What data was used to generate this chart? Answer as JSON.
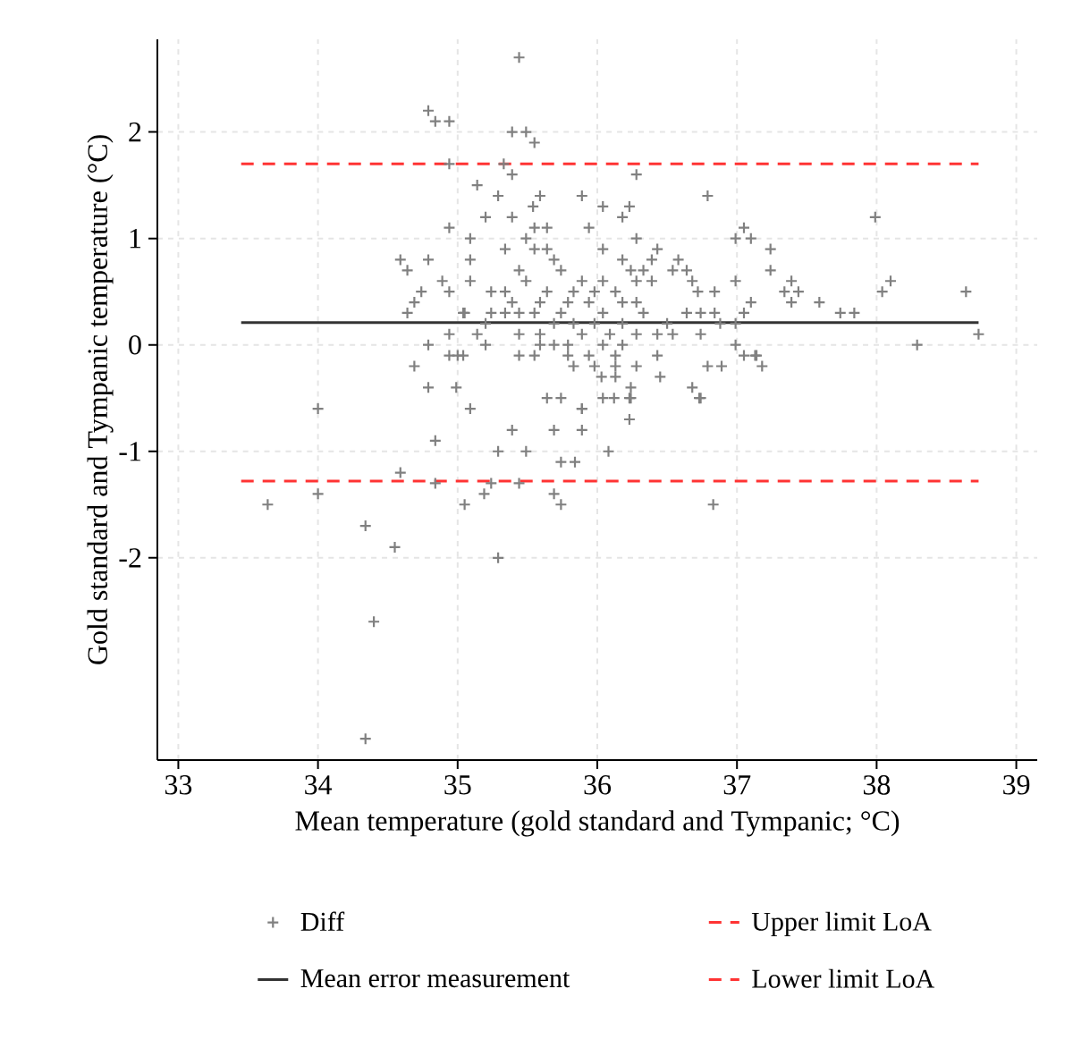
{
  "chart_data": {
    "type": "scatter",
    "xlabel": "Mean temperature (gold standard and Tympanic; °C)",
    "ylabel": "Gold standard and Tympanic temperature (°C)",
    "xlim": [
      32.85,
      39.15
    ],
    "ylim": [
      -3.9,
      2.87
    ],
    "xticks": [
      33,
      34,
      35,
      36,
      37,
      38,
      39
    ],
    "yticks": [
      -2,
      -1,
      0,
      1,
      2
    ],
    "grid": true,
    "legend": "bottom",
    "series": [
      {
        "name": "Diff",
        "marker": "cross",
        "color": "#808080",
        "x": [
          33.64,
          34.0,
          34.34,
          34.55,
          34.4,
          34.34,
          34.59,
          34.84,
          34.84,
          34.0,
          35.05,
          35.09,
          35.19,
          35.24,
          35.29,
          35.29,
          35.39,
          35.44,
          35.49,
          35.69,
          35.74,
          35.69,
          35.74,
          35.84,
          35.89,
          35.89,
          36.83,
          36.08,
          36.23,
          36.12,
          36.23,
          36.73,
          34.79,
          34.84,
          34.94,
          34.94,
          34.94,
          34.59,
          34.64,
          34.79,
          34.89,
          34.94,
          34.74,
          34.69,
          34.64,
          35.05,
          34.79,
          34.94,
          34.94,
          35.0,
          34.69,
          34.79,
          34.99,
          35.44,
          35.39,
          35.49,
          35.55,
          35.33,
          35.39,
          36.28,
          35.14,
          35.29,
          35.59,
          35.89,
          36.79,
          35.2,
          35.54,
          36.04,
          36.23,
          36.18,
          35.39,
          35.55,
          35.64,
          35.94,
          35.09,
          35.49,
          36.28,
          36.99,
          37.05,
          37.1,
          35.34,
          35.55,
          35.64,
          36.04,
          36.43,
          35.09,
          35.69,
          36.18,
          36.39,
          36.58,
          35.44,
          35.74,
          36.24,
          36.33,
          36.54,
          36.64,
          35.09,
          35.49,
          35.89,
          36.04,
          36.28,
          36.39,
          36.68,
          36.99,
          35.24,
          35.34,
          35.64,
          35.83,
          35.98,
          36.13,
          36.72,
          36.84,
          35.39,
          35.59,
          35.79,
          35.94,
          36.18,
          36.28,
          37.1,
          35.04,
          35.24,
          35.34,
          35.44,
          35.55,
          35.74,
          36.04,
          36.33,
          36.64,
          36.74,
          36.84,
          37.05,
          35.2,
          35.69,
          35.83,
          35.98,
          36.18,
          36.5,
          36.88,
          36.99,
          35.14,
          35.44,
          35.59,
          35.89,
          36.09,
          36.28,
          36.43,
          36.54,
          36.74,
          35.2,
          35.59,
          35.69,
          35.79,
          36.04,
          36.18,
          36.99,
          35.04,
          35.44,
          35.55,
          35.79,
          35.94,
          36.13,
          36.43,
          37.05,
          37.13,
          35.83,
          35.98,
          36.13,
          36.28,
          36.79,
          36.89,
          37.18,
          36.03,
          36.13,
          36.45,
          36.24,
          36.68,
          35.64,
          35.74,
          36.04,
          36.24,
          36.74,
          35.89,
          37.99,
          37.24,
          37.24,
          37.39,
          37.34,
          37.44,
          37.39,
          37.59,
          37.74,
          37.84,
          38.04,
          38.1,
          38.64,
          38.73,
          38.29,
          37.14
        ],
        "values": [
          -1.5,
          -1.4,
          -1.7,
          -1.9,
          -2.6,
          -3.7,
          -1.2,
          -0.9,
          -1.3,
          -0.6,
          -1.5,
          -0.6,
          -1.4,
          -1.3,
          -1.0,
          -2.0,
          -0.8,
          -1.3,
          -1.0,
          -1.4,
          -1.5,
          -0.8,
          -1.1,
          -1.1,
          -0.8,
          -0.6,
          -1.5,
          -1.0,
          -0.7,
          -0.5,
          -0.5,
          -0.5,
          2.2,
          2.1,
          2.1,
          1.7,
          1.1,
          0.8,
          0.7,
          0.8,
          0.6,
          0.5,
          0.5,
          0.4,
          0.3,
          0.3,
          0.0,
          0.1,
          -0.1,
          -0.1,
          -0.2,
          -0.4,
          -0.4,
          2.7,
          2.0,
          2.0,
          1.9,
          1.7,
          1.6,
          1.6,
          1.5,
          1.4,
          1.4,
          1.4,
          1.4,
          1.2,
          1.3,
          1.3,
          1.3,
          1.2,
          1.2,
          1.1,
          1.1,
          1.1,
          1.0,
          1.0,
          1.0,
          1.0,
          1.1,
          1.0,
          0.9,
          0.9,
          0.9,
          0.9,
          0.9,
          0.8,
          0.8,
          0.8,
          0.8,
          0.8,
          0.7,
          0.7,
          0.7,
          0.7,
          0.7,
          0.7,
          0.6,
          0.6,
          0.6,
          0.6,
          0.6,
          0.6,
          0.6,
          0.6,
          0.5,
          0.5,
          0.5,
          0.5,
          0.5,
          0.5,
          0.5,
          0.5,
          0.4,
          0.4,
          0.4,
          0.4,
          0.4,
          0.4,
          0.4,
          0.3,
          0.3,
          0.3,
          0.3,
          0.3,
          0.3,
          0.3,
          0.3,
          0.3,
          0.3,
          0.3,
          0.3,
          0.2,
          0.2,
          0.2,
          0.2,
          0.2,
          0.2,
          0.2,
          0.2,
          0.1,
          0.1,
          0.1,
          0.1,
          0.1,
          0.1,
          0.1,
          0.1,
          0.1,
          0.0,
          0.0,
          0.0,
          0.0,
          0.0,
          0.0,
          0.0,
          -0.1,
          -0.1,
          -0.1,
          -0.1,
          -0.1,
          -0.1,
          -0.1,
          -0.1,
          -0.1,
          -0.2,
          -0.2,
          -0.2,
          -0.2,
          -0.2,
          -0.2,
          -0.2,
          -0.3,
          -0.3,
          -0.3,
          -0.4,
          -0.4,
          -0.5,
          -0.5,
          -0.5,
          -0.5,
          -0.5,
          -0.6,
          1.2,
          0.9,
          0.7,
          0.6,
          0.5,
          0.5,
          0.4,
          0.4,
          0.3,
          0.3,
          0.5,
          0.6,
          0.5,
          0.1,
          0.0,
          -0.1
        ]
      },
      {
        "name": "Upper limit LoA",
        "type": "line",
        "line_style": "dashed",
        "color": "#ff3333",
        "x": [
          33.45,
          38.73
        ],
        "values": [
          1.7,
          1.7
        ]
      },
      {
        "name": "Mean error measurement",
        "type": "line",
        "line_style": "solid",
        "color": "#333333",
        "x": [
          33.45,
          38.73
        ],
        "values": [
          0.21,
          0.21
        ]
      },
      {
        "name": "Lower limit LoA",
        "type": "line",
        "line_style": "dashed",
        "color": "#ff3333",
        "x": [
          33.45,
          38.73
        ],
        "values": [
          -1.28,
          -1.28
        ]
      }
    ]
  }
}
